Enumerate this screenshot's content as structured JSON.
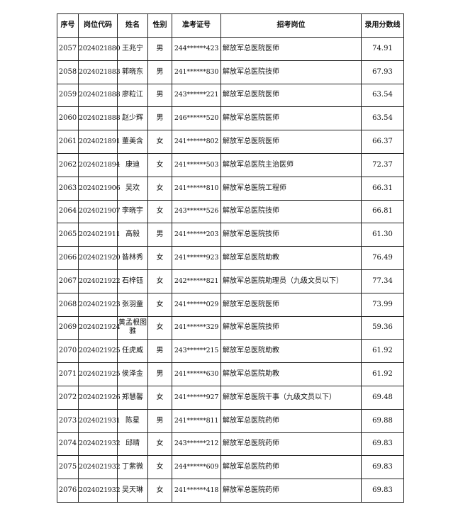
{
  "table": {
    "headers": [
      "序号",
      "岗位代码",
      "姓名",
      "性别",
      "准考证号",
      "招考岗位",
      "录用分数线"
    ],
    "rows": [
      [
        "2057",
        "2024021880",
        "王兆宁",
        "男",
        "244******423",
        "解放军总医院医师",
        "74.91"
      ],
      [
        "2058",
        "2024021883",
        "郭晓东",
        "男",
        "241******830",
        "解放军总医院技师",
        "67.93"
      ],
      [
        "2059",
        "2024021888",
        "廖粒江",
        "男",
        "243******221",
        "解放军总医院医师",
        "63.54"
      ],
      [
        "2060",
        "2024021888",
        "赵少辉",
        "男",
        "246******520",
        "解放军总医院医师",
        "63.54"
      ],
      [
        "2061",
        "2024021891",
        "董美含",
        "女",
        "241******802",
        "解放军总医院医师",
        "66.37"
      ],
      [
        "2062",
        "2024021894",
        "康迪",
        "女",
        "241******503",
        "解放军总医院主治医师",
        "72.37"
      ],
      [
        "2063",
        "2024021906",
        "吴欢",
        "女",
        "241******810",
        "解放军总医院工程师",
        "66.31"
      ],
      [
        "2064",
        "2024021907",
        "李晓宇",
        "女",
        "243******526",
        "解放军总医院技师",
        "66.81"
      ],
      [
        "2065",
        "2024021911",
        "高毅",
        "男",
        "241******203",
        "解放军总医院技师",
        "61.30"
      ],
      [
        "2066",
        "2024021920",
        "昝林秀",
        "女",
        "241******923",
        "解放军总医院助教",
        "76.49"
      ],
      [
        "2067",
        "2024021922",
        "石梓钰",
        "女",
        "242******821",
        "解放军总医院助理员（九级文员以下）",
        "77.34"
      ],
      [
        "2068",
        "2024021923",
        "张羽童",
        "女",
        "241******029",
        "解放军总医院医师",
        "73.99"
      ],
      [
        "2069",
        "2024021924",
        "黄孟根图雅",
        "女",
        "241******329",
        "解放军总医院技师",
        "59.36"
      ],
      [
        "2070",
        "2024021925",
        "任虎威",
        "男",
        "243******215",
        "解放军总医院助教",
        "61.92"
      ],
      [
        "2071",
        "2024021925",
        "侯泽金",
        "男",
        "241******630",
        "解放军总医院助教",
        "61.92"
      ],
      [
        "2072",
        "2024021926",
        "郑慧馨",
        "女",
        "241******927",
        "解放军总医院干事（九级文员以下）",
        "69.48"
      ],
      [
        "2073",
        "2024021931",
        "陈星",
        "男",
        "241******811",
        "解放军总医院药师",
        "69.88"
      ],
      [
        "2074",
        "2024021932",
        "邱晴",
        "女",
        "243******212",
        "解放军总医院药师",
        "69.83"
      ],
      [
        "2075",
        "2024021932",
        "丁紫微",
        "女",
        "244******609",
        "解放军总医院药师",
        "69.83"
      ],
      [
        "2076",
        "2024021932",
        "吴天琳",
        "女",
        "241******418",
        "解放军总医院药师",
        "69.83"
      ]
    ]
  }
}
